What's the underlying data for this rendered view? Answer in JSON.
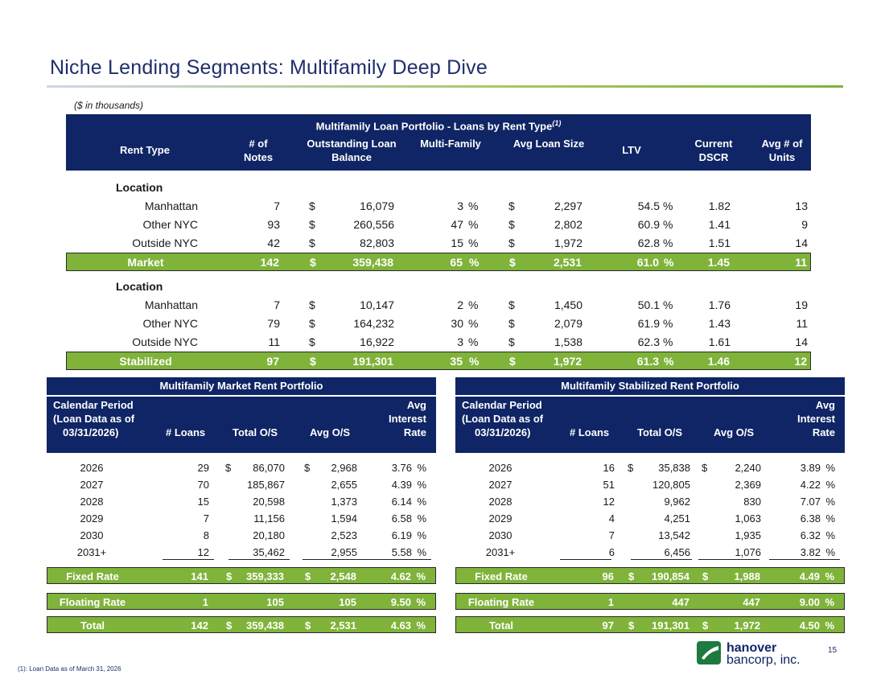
{
  "title": "Niche Lending Segments: Multifamily Deep Dive",
  "subtitle": "($ in thousands)",
  "top_table": {
    "banner": "Multifamily Loan Portfolio - Loans by Rent Type",
    "banner_sup": "(1)",
    "headers": [
      "Rent Type",
      "# of Notes",
      "Outstanding Loan Balance",
      "Multi-Family",
      "Avg Loan Size",
      "LTV",
      "Current DSCR",
      "Avg # of Units"
    ],
    "market": {
      "section": "Location",
      "rows": [
        {
          "name": "Manhattan",
          "notes": "7",
          "bal": "16,079",
          "pct": "3",
          "avg": "2,297",
          "ltv": "54.5",
          "dscr": "1.82",
          "units": "13"
        },
        {
          "name": "Other NYC",
          "notes": "93",
          "bal": "260,556",
          "pct": "47",
          "avg": "2,802",
          "ltv": "60.9",
          "dscr": "1.41",
          "units": "9"
        },
        {
          "name": "Outside NYC",
          "notes": "42",
          "bal": "82,803",
          "pct": "15",
          "avg": "1,972",
          "ltv": "62.8",
          "dscr": "1.51",
          "units": "14"
        }
      ],
      "total": {
        "name": "Market",
        "notes": "142",
        "bal": "359,438",
        "pct": "65",
        "avg": "2,531",
        "ltv": "61.0",
        "dscr": "1.45",
        "units": "11"
      }
    },
    "stabilized": {
      "section": "Location",
      "rows": [
        {
          "name": "Manhattan",
          "notes": "7",
          "bal": "10,147",
          "pct": "2",
          "avg": "1,450",
          "ltv": "50.1",
          "dscr": "1.76",
          "units": "19"
        },
        {
          "name": "Other NYC",
          "notes": "79",
          "bal": "164,232",
          "pct": "30",
          "avg": "2,079",
          "ltv": "61.9",
          "dscr": "1.43",
          "units": "11"
        },
        {
          "name": "Outside NYC",
          "notes": "11",
          "bal": "16,922",
          "pct": "3",
          "avg": "1,538",
          "ltv": "62.3",
          "dscr": "1.61",
          "units": "14"
        }
      ],
      "total": {
        "name": "Stabilized",
        "notes": "97",
        "bal": "191,301",
        "pct": "35",
        "avg": "1,972",
        "ltv": "61.3",
        "dscr": "1.46",
        "units": "12"
      }
    }
  },
  "market_table": {
    "banner": "Multifamily Market Rent Portfolio",
    "h1": "Calendar Period",
    "h2": "(Loan Data as of",
    "h3": "03/31/2026)",
    "h_loans": "# Loans",
    "h_total": "Total O/S",
    "h_avg": "Avg O/S",
    "h_rate1": "Avg",
    "h_rate2": "Interest",
    "h_rate3": "Rate",
    "rows": [
      {
        "year": "2026",
        "loans": "29",
        "total": "86,070",
        "avg": "2,968",
        "rate": "3.76"
      },
      {
        "year": "2027",
        "loans": "70",
        "total": "185,867",
        "avg": "2,655",
        "rate": "4.39"
      },
      {
        "year": "2028",
        "loans": "15",
        "total": "20,598",
        "avg": "1,373",
        "rate": "6.14"
      },
      {
        "year": "2029",
        "loans": "7",
        "total": "11,156",
        "avg": "1,594",
        "rate": "6.58"
      },
      {
        "year": "2030",
        "loans": "8",
        "total": "20,180",
        "avg": "2,523",
        "rate": "6.19"
      },
      {
        "year": "2031+",
        "loans": "12",
        "total": "35,462",
        "avg": "2,955",
        "rate": "5.58"
      }
    ],
    "fixed": {
      "label": "Fixed Rate",
      "loans": "141",
      "total": "359,333",
      "avg": "2,548",
      "rate": "4.62"
    },
    "floating": {
      "label": "Floating Rate",
      "loans": "1",
      "total": "105",
      "avg": "105",
      "rate": "9.50"
    },
    "total": {
      "label": "Total",
      "loans": "142",
      "total": "359,438",
      "avg": "2,531",
      "rate": "4.63"
    }
  },
  "stabilized_table": {
    "banner": "Multifamily Stabilized Rent Portfolio",
    "h1": "Calendar Period",
    "h2": "(Loan Data as of",
    "h3": "03/31/2026)",
    "h_loans": "# Loans",
    "h_total": "Total O/S",
    "h_avg": "Avg O/S",
    "h_rate1": "Avg",
    "h_rate2": "Interest",
    "h_rate3": "Rate",
    "rows": [
      {
        "year": "2026",
        "loans": "16",
        "total": "35,838",
        "avg": "2,240",
        "rate": "3.89"
      },
      {
        "year": "2027",
        "loans": "51",
        "total": "120,805",
        "avg": "2,369",
        "rate": "4.22"
      },
      {
        "year": "2028",
        "loans": "12",
        "total": "9,962",
        "avg": "830",
        "rate": "7.07"
      },
      {
        "year": "2029",
        "loans": "4",
        "total": "4,251",
        "avg": "1,063",
        "rate": "6.38"
      },
      {
        "year": "2030",
        "loans": "7",
        "total": "13,542",
        "avg": "1,935",
        "rate": "6.32"
      },
      {
        "year": "2031+",
        "loans": "6",
        "total": "6,456",
        "avg": "1,076",
        "rate": "3.82"
      }
    ],
    "fixed": {
      "label": "Fixed Rate",
      "loans": "96",
      "total": "190,854",
      "avg": "1,988",
      "rate": "4.49"
    },
    "floating": {
      "label": "Floating Rate",
      "loans": "1",
      "total": "447",
      "avg": "447",
      "rate": "9.00"
    },
    "total": {
      "label": "Total",
      "loans": "97",
      "total": "191,301",
      "avg": "1,972",
      "rate": "4.50"
    }
  },
  "symbols": {
    "dollar": "$",
    "pct": "%"
  },
  "logo": {
    "line1": "hanover",
    "line2": "bancorp, inc.",
    "mark_color": "#1f7a3f",
    "text_color": "#0f2565",
    "accent_color": "#7fb33a"
  },
  "page_number": "15",
  "footnote": "(1): Loan Data as of March 31, 2026",
  "colors": {
    "navy": "#0f2565",
    "green": "#7fb33a",
    "title": "#1f2f6b"
  }
}
